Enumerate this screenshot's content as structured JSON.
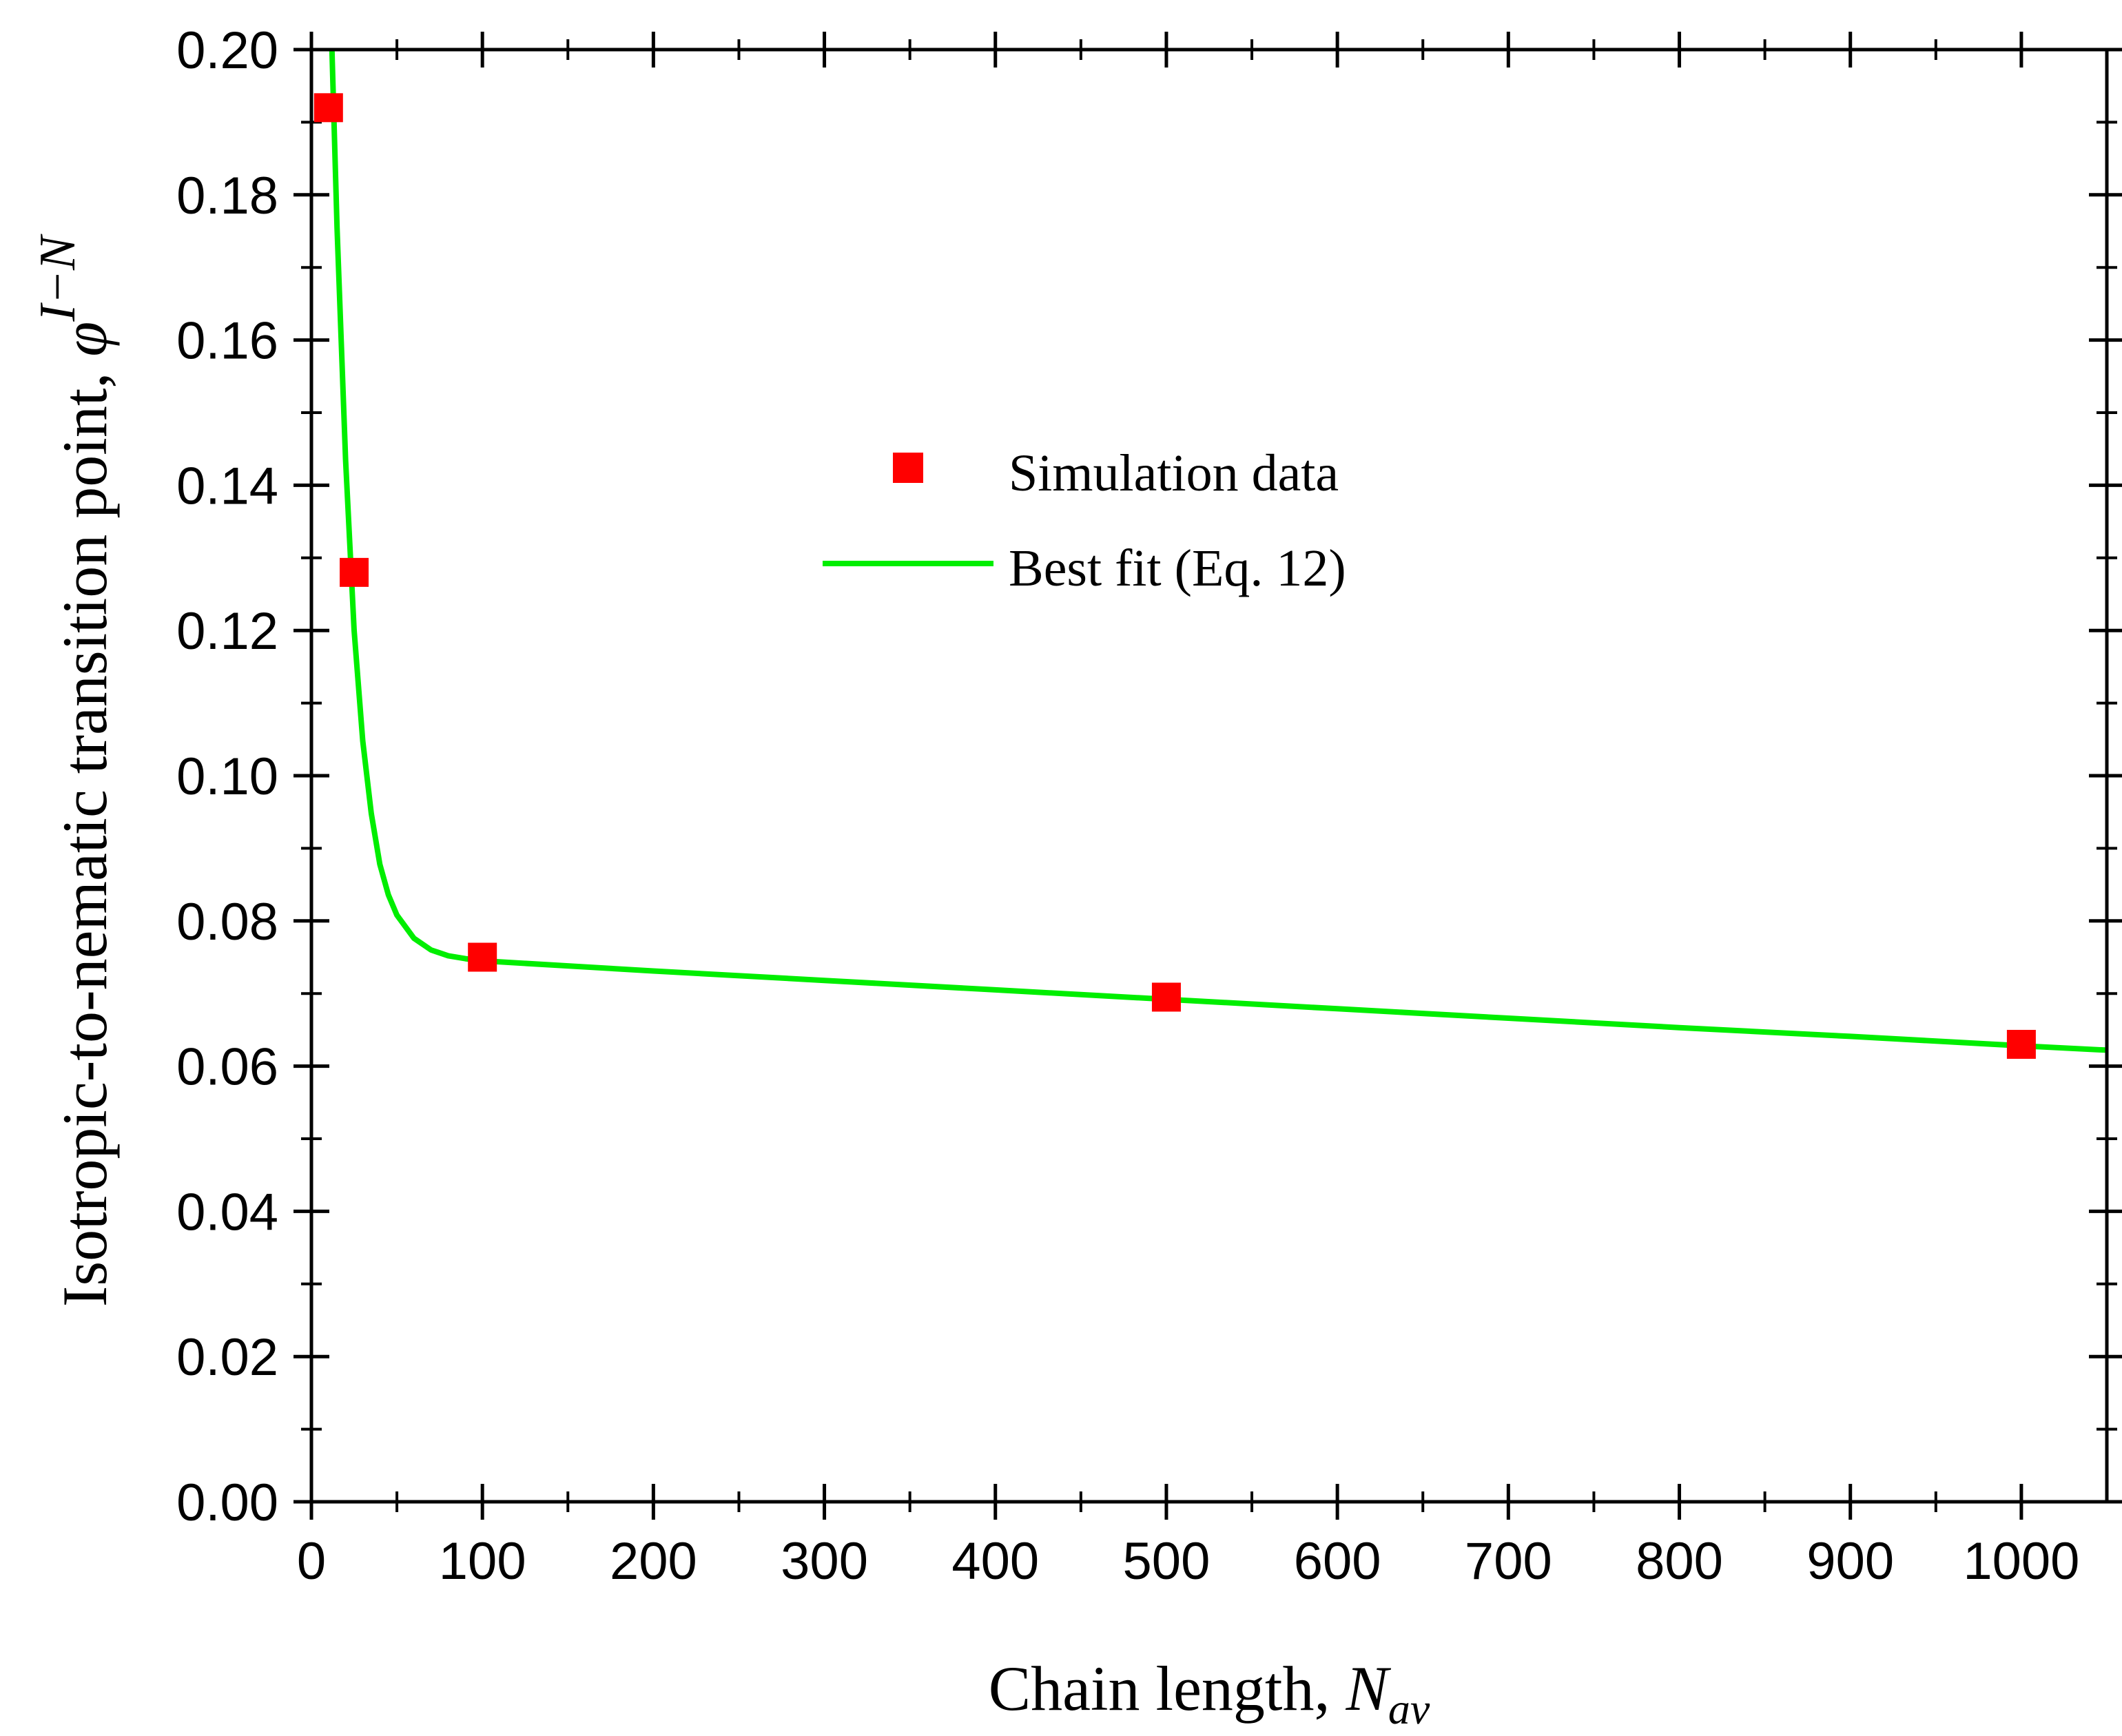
{
  "chart_data": {
    "type": "scatter",
    "title": "",
    "xlabel": "Chain length, ",
    "xlabel_var": "N",
    "xlabel_sub": "av",
    "ylabel": "Isotropic-to-nematic transition point, ",
    "ylabel_var": "φ",
    "ylabel_sup": "I−N",
    "xlim": [
      0,
      1050
    ],
    "ylim": [
      0,
      0.2
    ],
    "x_ticks": [
      0,
      100,
      200,
      300,
      400,
      500,
      600,
      700,
      800,
      900,
      1000
    ],
    "x_tick_labels": [
      "0",
      "100",
      "200",
      "300",
      "400",
      "500",
      "600",
      "700",
      "800",
      "900",
      "1000"
    ],
    "x_minor_step": 50,
    "y_ticks": [
      0,
      0.02,
      0.04,
      0.06,
      0.08,
      0.1,
      0.12,
      0.14,
      0.16,
      0.18,
      0.2
    ],
    "y_tick_labels": [
      "0.00",
      "0.02",
      "0.04",
      "0.06",
      "0.08",
      "0.10",
      "0.12",
      "0.14",
      "0.16",
      "0.18",
      "0.20"
    ],
    "y_minor_step": 0.01,
    "grid": false,
    "legend_position": "center",
    "series": [
      {
        "name": "Simulation data",
        "kind": "markers",
        "marker": "square",
        "color": "#ff0000",
        "x": [
          10,
          25,
          100,
          500,
          1000
        ],
        "y": [
          0.192,
          0.128,
          0.075,
          0.0695,
          0.063
        ]
      },
      {
        "name": "Best fit (Eq. 12)",
        "kind": "line",
        "color": "#00ee00",
        "x": [
          12,
          15,
          20,
          25,
          30,
          35,
          40,
          45,
          50,
          60,
          70,
          80,
          90,
          100,
          150,
          200,
          300,
          400,
          500,
          600,
          700,
          800,
          900,
          1000,
          1050
        ],
        "y": [
          0.2,
          0.1755,
          0.1435,
          0.12,
          0.1048,
          0.0948,
          0.0878,
          0.0836,
          0.0808,
          0.0776,
          0.076,
          0.0752,
          0.0748,
          0.0745,
          0.0738,
          0.0731,
          0.0718,
          0.0705,
          0.0692,
          0.0679,
          0.0666,
          0.0653,
          0.0641,
          0.0628,
          0.0622
        ]
      }
    ]
  }
}
